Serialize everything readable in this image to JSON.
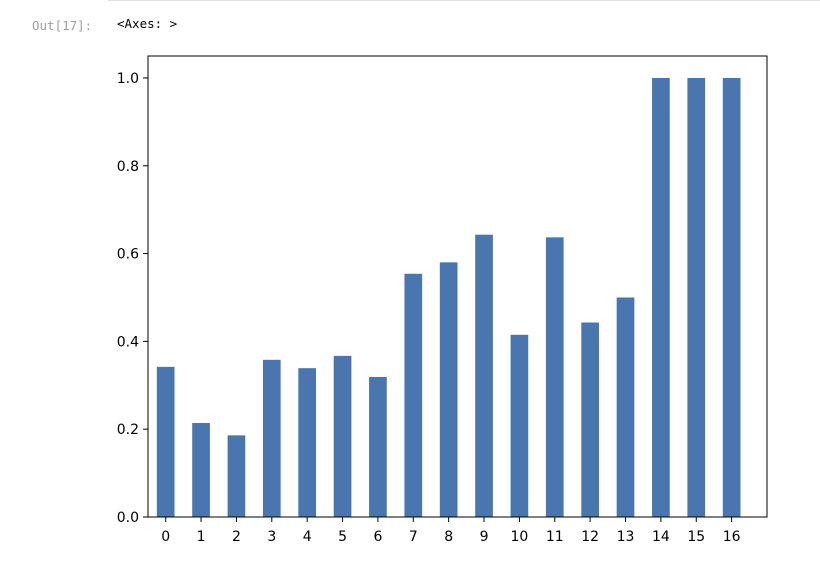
{
  "cell": {
    "prompt": "Out[17]:",
    "output": "<Axes: >"
  },
  "colors": {
    "bar": "#4a76b0",
    "axis": "#000000"
  },
  "chart_data": {
    "type": "bar",
    "categories": [
      "0",
      "1",
      "2",
      "3",
      "4",
      "5",
      "6",
      "7",
      "8",
      "9",
      "10",
      "11",
      "12",
      "13",
      "14",
      "15",
      "16"
    ],
    "values": [
      0.342,
      0.214,
      0.186,
      0.358,
      0.339,
      0.367,
      0.319,
      0.554,
      0.58,
      0.643,
      0.415,
      0.637,
      0.443,
      0.5,
      1.0,
      1.0,
      1.0
    ],
    "title": "",
    "xlabel": "",
    "ylabel": "",
    "ylim": [
      0,
      1.05
    ],
    "yticks": [
      "0.0",
      "0.2",
      "0.4",
      "0.6",
      "0.8",
      "1.0"
    ],
    "ytick_values": [
      0.0,
      0.2,
      0.4,
      0.6,
      0.8,
      1.0
    ],
    "grid": false,
    "legend": "none"
  }
}
